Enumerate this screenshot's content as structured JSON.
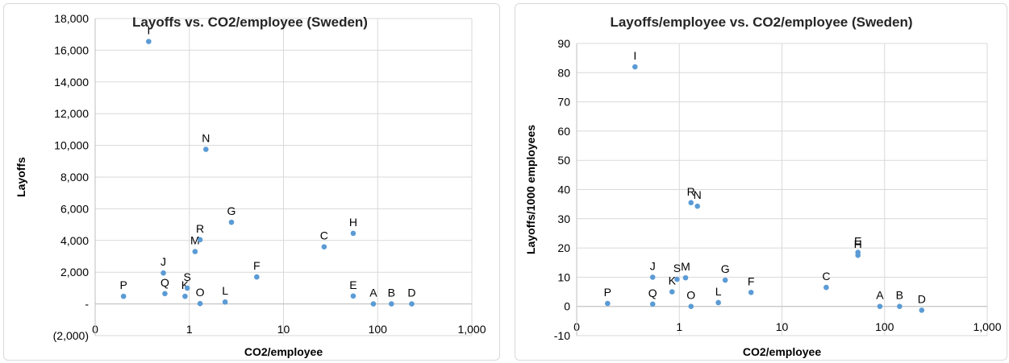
{
  "chart_data": [
    {
      "type": "scatter",
      "title": "Layoffs vs. CO2/employee (Sweden)",
      "xlabel": "CO2/employee",
      "ylabel": "Layoffs",
      "xscale": "log",
      "xlim": [
        0.1,
        1000
      ],
      "ylim": [
        -2000,
        18000
      ],
      "x_tick_labels": [
        "0",
        "1",
        "10",
        "100",
        "1,000"
      ],
      "y_ticks": [
        -2000,
        0,
        2000,
        4000,
        6000,
        8000,
        10000,
        12000,
        14000,
        16000,
        18000
      ],
      "y_tick_labels": [
        "(2,000)",
        "-",
        "2,000",
        "4,000",
        "6,000",
        "8,000",
        "10,000",
        "12,000",
        "14,000",
        "16,000",
        "18,000"
      ],
      "grid": true,
      "legend": "none",
      "marker_color": "#5b9bd5",
      "points": [
        {
          "label": "A",
          "x": 90,
          "y": 0
        },
        {
          "label": "B",
          "x": 140,
          "y": 0
        },
        {
          "label": "C",
          "x": 27,
          "y": 3600
        },
        {
          "label": "D",
          "x": 230,
          "y": 0
        },
        {
          "label": "E",
          "x": 55,
          "y": 500
        },
        {
          "label": "F",
          "x": 5.2,
          "y": 1700
        },
        {
          "label": "G",
          "x": 2.8,
          "y": 5150
        },
        {
          "label": "H",
          "x": 55,
          "y": 4450
        },
        {
          "label": "I",
          "x": 0.37,
          "y": 16550
        },
        {
          "label": "J",
          "x": 0.53,
          "y": 1950
        },
        {
          "label": "K",
          "x": 0.9,
          "y": 480
        },
        {
          "label": "L",
          "x": 2.4,
          "y": 120
        },
        {
          "label": "M",
          "x": 1.15,
          "y": 3300
        },
        {
          "label": "N",
          "x": 1.5,
          "y": 9750
        },
        {
          "label": "O",
          "x": 1.3,
          "y": 20
        },
        {
          "label": "P",
          "x": 0.2,
          "y": 480
        },
        {
          "label": "Q",
          "x": 0.55,
          "y": 650
        },
        {
          "label": "R",
          "x": 1.3,
          "y": 4050
        },
        {
          "label": "S",
          "x": 0.95,
          "y": 1000
        }
      ]
    },
    {
      "type": "scatter",
      "title": "Layoffs/employee vs. CO2/employee (Sweden)",
      "xlabel": "CO2/employee",
      "ylabel": "Layoffs/1000 employees",
      "xscale": "log",
      "xlim": [
        0.1,
        1000
      ],
      "ylim": [
        -10,
        90
      ],
      "x_tick_labels": [
        "0",
        "1",
        "10",
        "100",
        "1,000"
      ],
      "y_ticks": [
        -10,
        0,
        10,
        20,
        30,
        40,
        50,
        60,
        70,
        80,
        90
      ],
      "y_tick_labels": [
        "-10",
        "0",
        "10",
        "20",
        "30",
        "40",
        "50",
        "60",
        "70",
        "80",
        "90"
      ],
      "grid": true,
      "legend": "none",
      "marker_color": "#5b9bd5",
      "points": [
        {
          "label": "A",
          "x": 90,
          "y": 0
        },
        {
          "label": "B",
          "x": 140,
          "y": 0
        },
        {
          "label": "C",
          "x": 27,
          "y": 6.5
        },
        {
          "label": "D",
          "x": 230,
          "y": -1.3
        },
        {
          "label": "E",
          "x": 55,
          "y": 18.5
        },
        {
          "label": "F",
          "x": 5.0,
          "y": 4.8
        },
        {
          "label": "G",
          "x": 2.8,
          "y": 9
        },
        {
          "label": "H",
          "x": 55,
          "y": 17.5
        },
        {
          "label": "I",
          "x": 0.37,
          "y": 82
        },
        {
          "label": "J",
          "x": 0.55,
          "y": 10
        },
        {
          "label": "K",
          "x": 0.85,
          "y": 5
        },
        {
          "label": "L",
          "x": 2.4,
          "y": 1.3
        },
        {
          "label": "M",
          "x": 1.15,
          "y": 9.8
        },
        {
          "label": "N",
          "x": 1.5,
          "y": 34.3
        },
        {
          "label": "O",
          "x": 1.3,
          "y": 0
        },
        {
          "label": "P",
          "x": 0.2,
          "y": 1
        },
        {
          "label": "Q",
          "x": 0.55,
          "y": 0.8
        },
        {
          "label": "R",
          "x": 1.3,
          "y": 35.5
        },
        {
          "label": "S",
          "x": 0.95,
          "y": 9.3
        }
      ]
    }
  ]
}
